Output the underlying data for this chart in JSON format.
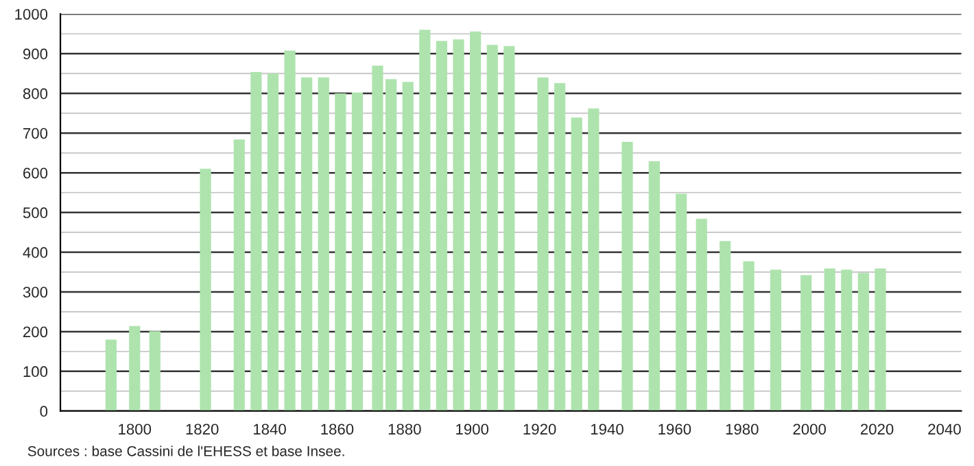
{
  "chart_data": {
    "type": "bar",
    "x": [
      1793,
      1800,
      1806,
      1821,
      1831,
      1836,
      1841,
      1846,
      1851,
      1856,
      1861,
      1866,
      1872,
      1876,
      1881,
      1886,
      1891,
      1896,
      1901,
      1906,
      1911,
      1921,
      1926,
      1931,
      1936,
      1946,
      1954,
      1962,
      1968,
      1975,
      1982,
      1990,
      1999,
      2006,
      2011,
      2016,
      2021
    ],
    "values": [
      180,
      214,
      201,
      610,
      684,
      854,
      850,
      908,
      840,
      840,
      800,
      802,
      870,
      836,
      829,
      960,
      932,
      936,
      956,
      922,
      919,
      840,
      826,
      739,
      762,
      678,
      629,
      547,
      484,
      428,
      377,
      356,
      342,
      359,
      356,
      348,
      359
    ],
    "color": "#aee3ae",
    "xlim": [
      1778,
      2045
    ],
    "xticks": [
      1800,
      1820,
      1840,
      1860,
      1880,
      1900,
      1920,
      1940,
      1960,
      1980,
      2000,
      2020,
      2040
    ],
    "ylim": [
      0,
      1000
    ],
    "yticks": [
      0,
      {
        "value": 50,
        "label": null
      },
      100,
      {
        "value": 150,
        "label": null
      },
      200,
      {
        "value": 250,
        "label": null
      },
      300,
      {
        "value": 350,
        "label": null
      },
      400,
      {
        "value": 450,
        "label": null
      },
      500,
      {
        "value": 550,
        "label": null
      },
      600,
      {
        "value": 650,
        "label": null
      },
      700,
      {
        "value": 750,
        "label": null
      },
      800,
      {
        "value": 850,
        "label": null
      },
      900,
      {
        "value": 950,
        "label": null
      },
      1000
    ],
    "grid": "y",
    "annotations": [
      "Sources : base Cassini de l'EHESS et base Insee."
    ]
  }
}
